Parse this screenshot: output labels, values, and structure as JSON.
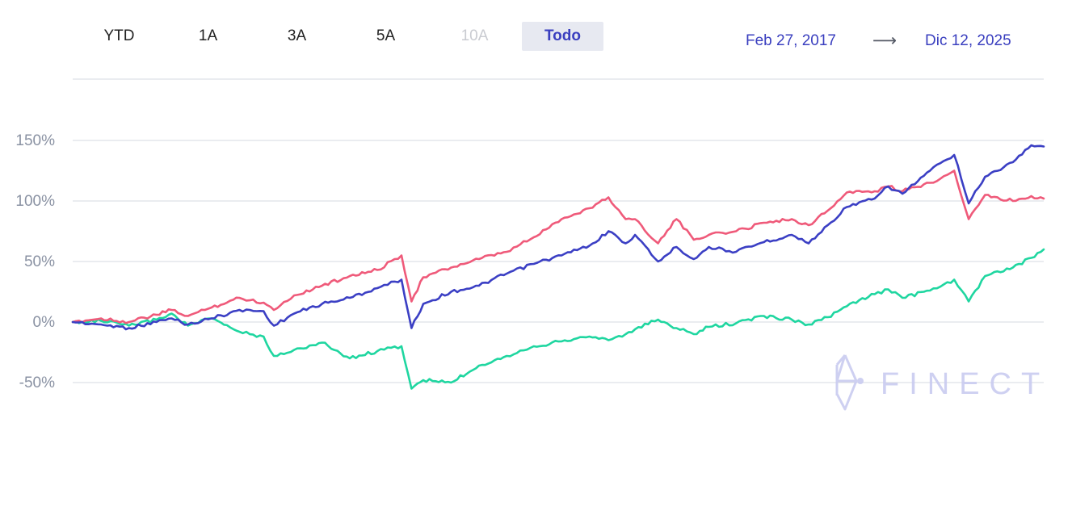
{
  "range_selector": {
    "buttons": [
      {
        "label": "YTD",
        "state": "normal"
      },
      {
        "label": "1A",
        "state": "normal"
      },
      {
        "label": "3A",
        "state": "normal"
      },
      {
        "label": "5A",
        "state": "normal"
      },
      {
        "label": "10A",
        "state": "disabled"
      },
      {
        "label": "Todo",
        "state": "active"
      }
    ]
  },
  "date_range": {
    "from": "Feb 27, 2017",
    "arrow": "⟶",
    "to": "Dic 12, 2025"
  },
  "watermark": {
    "text": "FINECT"
  },
  "colors": {
    "accent": "#3a3fbf",
    "grid": "#d5d9e0",
    "series_blue": "#3b3fc4",
    "series_red": "#ef5a7a",
    "series_green": "#1fd6a0"
  },
  "chart_data": {
    "type": "line",
    "title": "",
    "xlabel": "",
    "ylabel": "",
    "x_range": [
      "2017-02-27",
      "2025-12-12"
    ],
    "ylim": [
      -50,
      150
    ],
    "yticks": [
      150,
      100,
      50,
      0,
      -50
    ],
    "ytick_labels": [
      "150%",
      "100%",
      "50%",
      "0%",
      "-50%"
    ],
    "grid": true,
    "legend": "none",
    "series": [
      {
        "color": "#3b3fc4",
        "points": [
          [
            "2017-02-27",
            0
          ],
          [
            "2017-06-01",
            -2
          ],
          [
            "2017-09-01",
            -5
          ],
          [
            "2017-12-01",
            0
          ],
          [
            "2018-01-20",
            3
          ],
          [
            "2018-03-15",
            -2
          ],
          [
            "2018-06-01",
            3
          ],
          [
            "2018-09-01",
            10
          ],
          [
            "2018-11-20",
            9
          ],
          [
            "2018-12-24",
            -3
          ],
          [
            "2019-03-01",
            7
          ],
          [
            "2019-06-01",
            15
          ],
          [
            "2019-09-01",
            20
          ],
          [
            "2019-12-01",
            28
          ],
          [
            "2020-02-19",
            35
          ],
          [
            "2020-03-23",
            -5
          ],
          [
            "2020-05-01",
            15
          ],
          [
            "2020-08-01",
            25
          ],
          [
            "2020-11-01",
            30
          ],
          [
            "2021-02-01",
            40
          ],
          [
            "2021-05-01",
            48
          ],
          [
            "2021-08-01",
            55
          ],
          [
            "2021-11-01",
            63
          ],
          [
            "2022-01-03",
            75
          ],
          [
            "2022-03-01",
            65
          ],
          [
            "2022-04-01",
            72
          ],
          [
            "2022-06-16",
            50
          ],
          [
            "2022-08-16",
            62
          ],
          [
            "2022-10-12",
            52
          ],
          [
            "2022-12-01",
            62
          ],
          [
            "2023-03-01",
            58
          ],
          [
            "2023-06-01",
            66
          ],
          [
            "2023-09-01",
            72
          ],
          [
            "2023-10-27",
            65
          ],
          [
            "2023-12-29",
            80
          ],
          [
            "2024-03-01",
            95
          ],
          [
            "2024-06-01",
            102
          ],
          [
            "2024-07-16",
            112
          ],
          [
            "2024-09-01",
            106
          ],
          [
            "2024-12-01",
            125
          ],
          [
            "2025-02-19",
            138
          ],
          [
            "2025-04-08",
            98
          ],
          [
            "2025-06-01",
            120
          ],
          [
            "2025-09-01",
            132
          ],
          [
            "2025-11-01",
            146
          ],
          [
            "2025-12-12",
            145
          ]
        ]
      },
      {
        "color": "#ef5a7a",
        "points": [
          [
            "2017-02-27",
            0
          ],
          [
            "2017-06-01",
            3
          ],
          [
            "2017-09-01",
            0
          ],
          [
            "2017-12-01",
            6
          ],
          [
            "2018-01-20",
            10
          ],
          [
            "2018-03-15",
            5
          ],
          [
            "2018-06-01",
            12
          ],
          [
            "2018-09-01",
            20
          ],
          [
            "2018-11-20",
            16
          ],
          [
            "2018-12-24",
            10
          ],
          [
            "2019-03-01",
            22
          ],
          [
            "2019-06-01",
            30
          ],
          [
            "2019-09-01",
            38
          ],
          [
            "2019-12-01",
            43
          ],
          [
            "2020-02-19",
            55
          ],
          [
            "2020-03-23",
            17
          ],
          [
            "2020-05-01",
            37
          ],
          [
            "2020-08-01",
            45
          ],
          [
            "2020-11-01",
            52
          ],
          [
            "2021-02-01",
            58
          ],
          [
            "2021-05-01",
            70
          ],
          [
            "2021-08-01",
            85
          ],
          [
            "2021-11-01",
            94
          ],
          [
            "2022-01-03",
            103
          ],
          [
            "2022-03-01",
            85
          ],
          [
            "2022-04-01",
            85
          ],
          [
            "2022-06-16",
            65
          ],
          [
            "2022-08-16",
            85
          ],
          [
            "2022-10-12",
            68
          ],
          [
            "2022-12-01",
            72
          ],
          [
            "2023-03-01",
            75
          ],
          [
            "2023-06-01",
            82
          ],
          [
            "2023-09-01",
            85
          ],
          [
            "2023-10-27",
            80
          ],
          [
            "2023-12-29",
            92
          ],
          [
            "2024-03-01",
            107
          ],
          [
            "2024-06-01",
            108
          ],
          [
            "2024-07-16",
            112
          ],
          [
            "2024-09-01",
            108
          ],
          [
            "2024-12-01",
            115
          ],
          [
            "2025-02-19",
            125
          ],
          [
            "2025-04-08",
            85
          ],
          [
            "2025-06-01",
            105
          ],
          [
            "2025-09-01",
            100
          ],
          [
            "2025-11-01",
            104
          ],
          [
            "2025-12-12",
            102
          ]
        ]
      },
      {
        "color": "#1fd6a0",
        "points": [
          [
            "2017-02-27",
            0
          ],
          [
            "2017-06-01",
            1
          ],
          [
            "2017-09-01",
            -3
          ],
          [
            "2017-12-01",
            2
          ],
          [
            "2018-01-20",
            7
          ],
          [
            "2018-03-15",
            -3
          ],
          [
            "2018-06-01",
            3
          ],
          [
            "2018-09-01",
            -8
          ],
          [
            "2018-11-20",
            -12
          ],
          [
            "2018-12-24",
            -28
          ],
          [
            "2019-03-01",
            -23
          ],
          [
            "2019-06-01",
            -17
          ],
          [
            "2019-09-01",
            -30
          ],
          [
            "2019-12-01",
            -24
          ],
          [
            "2020-02-19",
            -20
          ],
          [
            "2020-03-23",
            -55
          ],
          [
            "2020-05-01",
            -48
          ],
          [
            "2020-08-01",
            -50
          ],
          [
            "2020-11-01",
            -36
          ],
          [
            "2021-02-01",
            -28
          ],
          [
            "2021-05-01",
            -20
          ],
          [
            "2021-08-01",
            -16
          ],
          [
            "2021-11-01",
            -12
          ],
          [
            "2022-01-03",
            -15
          ],
          [
            "2022-03-01",
            -10
          ],
          [
            "2022-04-01",
            -6
          ],
          [
            "2022-06-16",
            2
          ],
          [
            "2022-08-16",
            -5
          ],
          [
            "2022-10-12",
            -10
          ],
          [
            "2022-12-01",
            -4
          ],
          [
            "2023-03-01",
            -1
          ],
          [
            "2023-06-01",
            5
          ],
          [
            "2023-09-01",
            2
          ],
          [
            "2023-10-27",
            -2
          ],
          [
            "2023-12-29",
            4
          ],
          [
            "2024-03-01",
            13
          ],
          [
            "2024-06-01",
            23
          ],
          [
            "2024-07-16",
            27
          ],
          [
            "2024-09-01",
            20
          ],
          [
            "2024-12-01",
            26
          ],
          [
            "2025-02-19",
            35
          ],
          [
            "2025-04-08",
            17
          ],
          [
            "2025-06-01",
            38
          ],
          [
            "2025-09-01",
            45
          ],
          [
            "2025-11-01",
            53
          ],
          [
            "2025-12-12",
            60
          ]
        ]
      }
    ]
  }
}
